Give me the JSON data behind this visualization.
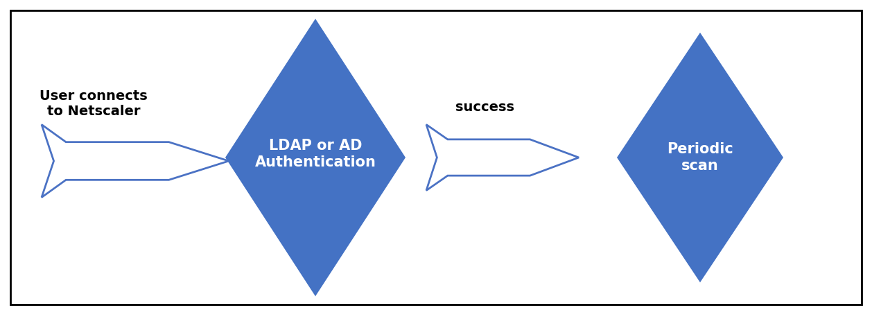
{
  "background_color": "#ffffff",
  "border_color": "#000000",
  "diamond_color": "#4472c4",
  "arrow_fill_color": "#ffffff",
  "arrow_edge_color": "#4b72c4",
  "text_color_dark": "#000000",
  "text_color_light": "#ffffff",
  "label_text": "User connects\nto Netscaler",
  "diamond1_text": "LDAP or AD\nAuthentication",
  "success_text": "success",
  "diamond2_text": "Periodic\nscan",
  "label_fontsize": 14,
  "diamond_fontsize": 15,
  "success_fontsize": 14,
  "figsize": [
    12.58,
    4.54
  ],
  "dpi": 100,
  "xlim": [
    0,
    12.58
  ],
  "ylim": [
    0,
    4.54
  ]
}
